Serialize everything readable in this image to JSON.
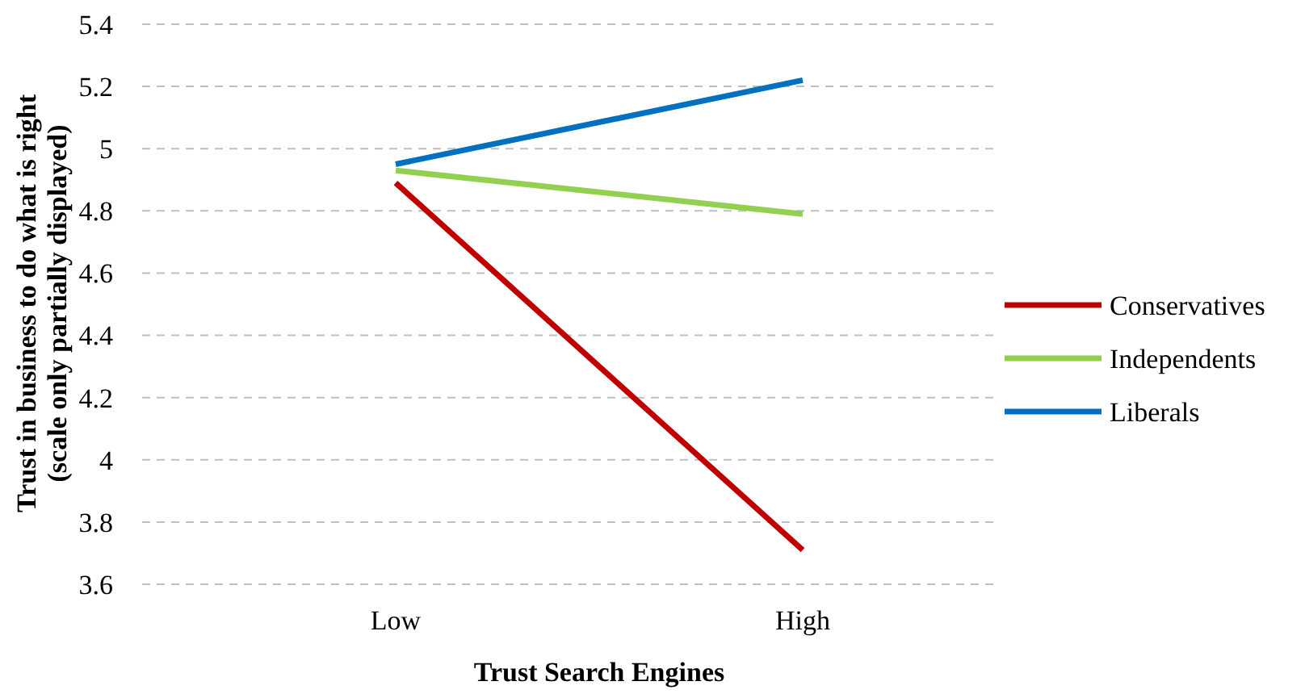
{
  "chart_data": {
    "type": "line",
    "xlabel": "Trust Search Engines",
    "ylabel": "Trust in business to do what is right\n(scale only partially displayed)",
    "categories": [
      "Low",
      "High"
    ],
    "series": [
      {
        "name": "Conservatives",
        "color": "#c00000",
        "values": [
          4.89,
          3.71
        ]
      },
      {
        "name": "Independents",
        "color": "#92d050",
        "values": [
          4.93,
          4.79
        ]
      },
      {
        "name": "Liberals",
        "color": "#0070c0",
        "values": [
          4.95,
          5.22
        ]
      }
    ],
    "ylim": [
      3.6,
      5.4
    ],
    "yticks": [
      3.6,
      3.8,
      4,
      4.2,
      4.4,
      4.6,
      4.8,
      5,
      5.2,
      5.4
    ],
    "grid": "y",
    "legend": "right",
    "marker": "none",
    "line_style": "solid"
  }
}
